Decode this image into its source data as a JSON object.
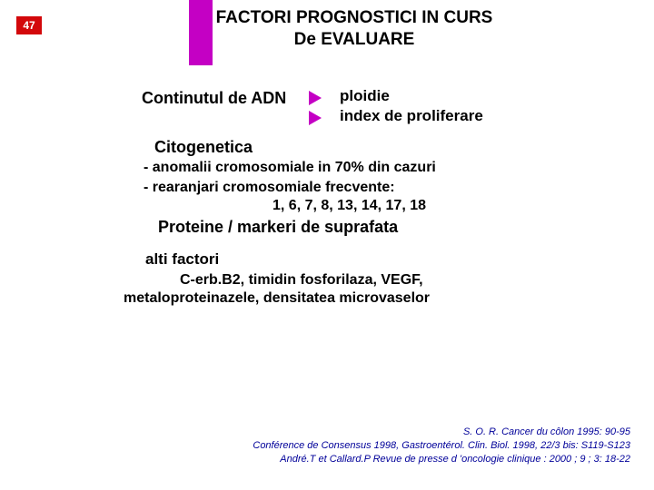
{
  "slide_number": "47",
  "accent_color": "#c400c4",
  "badge_color": "#d3080b",
  "ref_color": "#000099",
  "title_line1": "FACTORI PROGNOSTICI IN CURS",
  "title_line2": "De EVALUARE",
  "section1": {
    "label": "Continutul de ADN",
    "item1": "ploidie",
    "item2": "index de proliferare"
  },
  "section2": {
    "label": "Citogenetica",
    "line1": "- anomalii cromosomiale in 70% din cazuri",
    "line2": "- rearanjari cromosomiale frecvente:",
    "line3": "1, 6, 7, 8, 13, 14, 17, 18"
  },
  "section3": {
    "label": "Proteine / markeri de suprafata"
  },
  "section4": {
    "label": "alti factori",
    "line1": "C-erb.B2, timidin fosforilaza, VEGF,",
    "line2": "metaloproteinazele, densitatea microvaselor"
  },
  "references": {
    "r1": "S. O. R. Cancer du côlon 1995: 90-95",
    "r2": "Conférence de Consensus 1998, Gastroentérol. Clin. Biol. 1998, 22/3 bis: S119-S123",
    "r3": "André.T et Callard.P Revue de presse d 'oncologie clinique : 2000 ; 9 ; 3: 18-22"
  }
}
